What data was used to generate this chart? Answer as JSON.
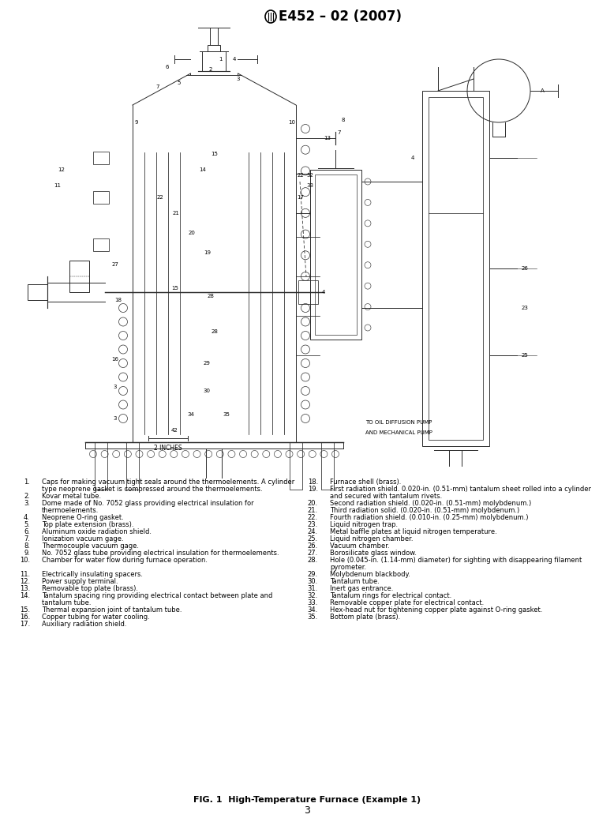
{
  "title": "E452 – 02 (2007)",
  "fig_caption": "FIG. 1  High-Temperature Furnace (Example 1)",
  "page_number": "3",
  "background_color": "#ffffff",
  "text_color": "#000000",
  "legend_left": [
    [
      "1.",
      "Caps for making vacuum tight seals around the thermoelements. A cylinder"
    ],
    [
      "",
      "type neoprene gasket is compressed around the thermoelements."
    ],
    [
      "2.",
      "Kovar metal tube."
    ],
    [
      "3.",
      "Dome made of No. 7052 glass providing electrical insulation for"
    ],
    [
      "",
      "thermoelements."
    ],
    [
      "4.",
      "Neoprene O-ring gasket."
    ],
    [
      "5.",
      "Top plate extension (brass)."
    ],
    [
      "6.",
      "Aluminum oxide radiation shield."
    ],
    [
      "7.",
      "Ionization vacuum gage."
    ],
    [
      "8.",
      "Thermocouple vacuum gage."
    ],
    [
      "9.",
      "No. 7052 glass tube providing electrical insulation for thermoelements."
    ],
    [
      "10.",
      "Chamber for water flow during furnace operation."
    ],
    [
      "",
      ""
    ],
    [
      "11.",
      "Electrically insulating spacers."
    ],
    [
      "12.",
      "Power supply terminal."
    ],
    [
      "13.",
      "Removable top plate (brass)."
    ],
    [
      "14.",
      "Tantalum spacing ring providing electrical contact between plate and"
    ],
    [
      "",
      "tantalum tube."
    ],
    [
      "15.",
      "Thermal expansion joint of tantalum tube."
    ],
    [
      "16.",
      "Copper tubing for water cooling."
    ],
    [
      "17.",
      "Auxiliary radiation shield."
    ]
  ],
  "legend_right": [
    [
      "18.",
      "Furnace shell (brass)."
    ],
    [
      "19.",
      "First radiation shield. 0.020-in. (0.51-mm) tantalum sheet rolled into a cylinder"
    ],
    [
      "",
      "and secured with tantalum rivets."
    ],
    [
      "20.",
      "Second radiation shield. (0.020-in. (0.51-mm) molybdenum.)"
    ],
    [
      "21.",
      "Third radiation solid. (0.020-in. (0.51-mm) molybdenum.)"
    ],
    [
      "22.",
      "Fourth radiation shield. (0.010-in. (0.25-mm) molybdenum.)"
    ],
    [
      "23.",
      "Liquid nitrogen trap."
    ],
    [
      "24.",
      "Metal baffle plates at liquid nitrogen temperature."
    ],
    [
      "25.",
      "Liquid nitrogen chamber."
    ],
    [
      "26.",
      "Vacuum chamber."
    ],
    [
      "27.",
      "Borosilicate glass window."
    ],
    [
      "28.",
      "Hole (0.045-in. (1.14-mm) diameter) for sighting with disappearing filament"
    ],
    [
      "",
      "pyrometer."
    ],
    [
      "29.",
      "Molybdenum blackbody."
    ],
    [
      "30.",
      "Tantalum tube."
    ],
    [
      "31.",
      "Inert gas entrance."
    ],
    [
      "32.",
      "Tantalum rings for electrical contact."
    ],
    [
      "33.",
      "Removable copper plate for electrical contact."
    ],
    [
      "34.",
      "Hex-head nut for tightening copper plate against O-ring gasket."
    ],
    [
      "35.",
      "Bottom plate (brass)."
    ]
  ],
  "title_fontsize": 12,
  "legend_fontsize": 6.0,
  "caption_fontsize": 8.0,
  "page_fontsize": 9,
  "draw_color": "#2a2a2a"
}
